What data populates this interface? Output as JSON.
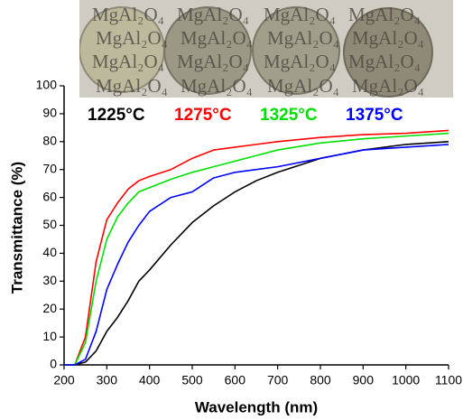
{
  "chart_data": {
    "type": "line",
    "x_label": "Wavelength (nm)",
    "y_label": "Transmittance (%)",
    "x": [
      200,
      225,
      250,
      275,
      300,
      325,
      350,
      375,
      400,
      450,
      500,
      550,
      600,
      650,
      700,
      800,
      900,
      1000,
      1100
    ],
    "series": [
      {
        "name": "1225°C",
        "color": "#000000",
        "values": [
          0,
          0,
          1,
          5,
          12,
          17,
          23,
          30,
          34,
          43,
          51,
          57,
          62,
          66,
          69,
          74,
          77,
          79,
          80
        ]
      },
      {
        "name": "1275°C",
        "color": "#ff0000",
        "values": [
          0,
          0,
          10,
          37,
          52,
          58,
          63,
          66,
          67.5,
          70,
          74,
          77,
          78,
          79,
          80,
          81.5,
          82.5,
          83,
          84
        ]
      },
      {
        "name": "1325°C",
        "color": "#00e000",
        "values": [
          0,
          0,
          8,
          30,
          45,
          53,
          58,
          62,
          63.5,
          66.5,
          69,
          71,
          73,
          75,
          77,
          79.5,
          81,
          82,
          83
        ]
      },
      {
        "name": "1375°C",
        "color": "#0000ff",
        "values": [
          0,
          0,
          2,
          12,
          27,
          36,
          44,
          50,
          55,
          60,
          62,
          67,
          69,
          70,
          71,
          74,
          77,
          78,
          79
        ]
      }
    ],
    "xlim": [
      200,
      1100
    ],
    "ylim": [
      0,
      100
    ],
    "xticks": [
      200,
      300,
      400,
      500,
      600,
      700,
      800,
      900,
      1000,
      1100
    ],
    "yticks": [
      0,
      10,
      20,
      30,
      40,
      50,
      60,
      70,
      80,
      90,
      100
    ]
  },
  "inset": {
    "label": "MgAl₂O₄"
  }
}
